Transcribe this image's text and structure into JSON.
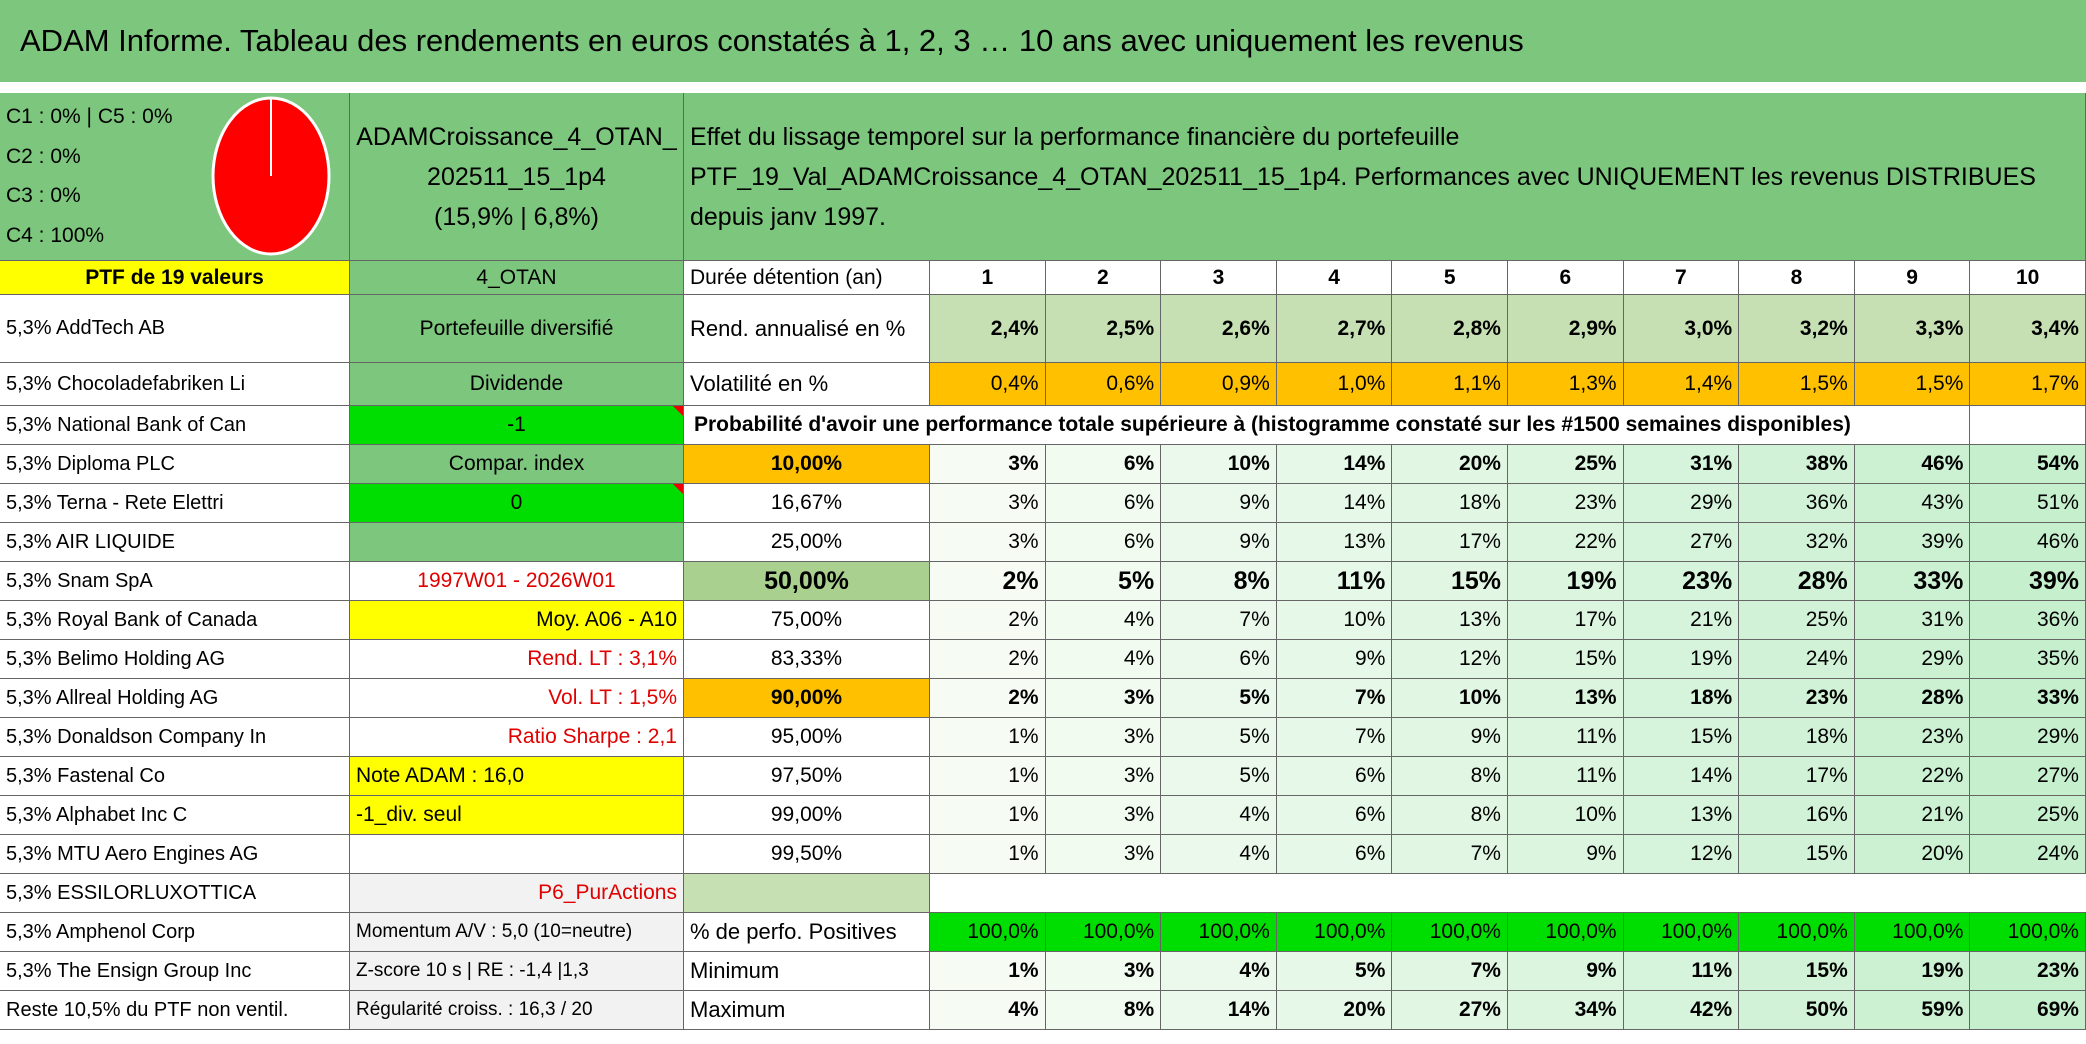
{
  "header": {
    "title": "ADAM Informe. Tableau des rendements en euros constatés à 1, 2, 3 … 10 ans avec uniquement les revenus"
  },
  "summary": {
    "allocation": [
      "C1 : 0% | C5 : 0%",
      "C2 : 0%",
      "C3 : 0%",
      "C4 : 100%"
    ],
    "portfolio": "ADAMCroissance_4_OTAN_202511_15_1p4",
    "stats": "(15,9% | 6,8%)",
    "description": "Effet du lissage temporel sur la performance financière du portefeuille PTF_19_Val_ADAMCroissance_4_OTAN_202511_15_1p4. Performances avec UNIQUEMENT les revenus DISTRIBUES depuis janv 1997."
  },
  "table": {
    "ptf_label": "PTF de 19 valeurs",
    "strategy": "4_OTAN",
    "holdings": [
      "5,3% AddTech AB",
      "5,3% Chocoladefabriken Li",
      "5,3% National Bank of Can",
      "5,3% Diploma PLC",
      "5,3% Terna - Rete Elettri",
      "5,3% AIR LIQUIDE",
      "5,3% Snam SpA",
      "5,3% Royal Bank of Canada",
      "5,3% Belimo Holding AG",
      "5,3% Allreal Holding AG",
      "5,3% Donaldson Company In",
      "5,3% Fastenal Co",
      "5,3% Alphabet Inc C",
      "5,3% MTU Aero Engines AG",
      "5,3% ESSILORLUXOTTICA",
      "5,3% Amphenol Corp",
      "5,3% The Ensign Group Inc",
      "Reste 10,5% du PTF non ventil."
    ],
    "info": [
      "Portefeuille diversifié",
      "Dividende",
      "-1",
      "Compar. index",
      "0",
      null,
      "1997W01 - 2026W01",
      "Moy. A06 - A10",
      "Rend. LT : 3,1%",
      "Vol. LT : 1,5%",
      "Ratio Sharpe : 2,1",
      "Note ADAM : 16,0",
      "-1_div. seul",
      null,
      "P6_PurActions",
      "Momentum A/V : 5,0 (10=neutre)",
      "Z-score 10 s | RE : -1,4 |1,3",
      "Régularité croiss. : 16,3 / 20"
    ],
    "duration_label": "Durée détention (an)",
    "years": [
      1,
      2,
      3,
      4,
      5,
      6,
      7,
      8,
      9,
      10
    ],
    "yield": {
      "label": "Rend. annualisé en %",
      "values": [
        "2,4%",
        "2,5%",
        "2,6%",
        "2,7%",
        "2,8%",
        "2,9%",
        "3,0%",
        "3,2%",
        "3,3%",
        "3,4%"
      ]
    },
    "volatility": {
      "label": "Volatilité en %",
      "values": [
        "0,4%",
        "0,6%",
        "0,9%",
        "1,0%",
        "1,1%",
        "1,3%",
        "1,4%",
        "1,5%",
        "1,5%",
        "1,7%"
      ]
    },
    "probability_title": "Probabilité d'avoir une performance totale supérieure à (histogramme constaté sur les #1500 semaines disponibles)",
    "probability_rows": [
      {
        "threshold": "10,00%",
        "values": [
          "3%",
          "6%",
          "10%",
          "14%",
          "20%",
          "25%",
          "31%",
          "38%",
          "46%",
          "54%"
        ]
      },
      {
        "threshold": "16,67%",
        "values": [
          "3%",
          "6%",
          "9%",
          "14%",
          "18%",
          "23%",
          "29%",
          "36%",
          "43%",
          "51%"
        ]
      },
      {
        "threshold": "25,00%",
        "values": [
          "3%",
          "6%",
          "9%",
          "13%",
          "17%",
          "22%",
          "27%",
          "32%",
          "39%",
          "46%"
        ]
      },
      {
        "threshold": "50,00%",
        "values": [
          "2%",
          "5%",
          "8%",
          "11%",
          "15%",
          "19%",
          "23%",
          "28%",
          "33%",
          "39%"
        ]
      },
      {
        "threshold": "75,00%",
        "values": [
          "2%",
          "4%",
          "7%",
          "10%",
          "13%",
          "17%",
          "21%",
          "25%",
          "31%",
          "36%"
        ]
      },
      {
        "threshold": "83,33%",
        "values": [
          "2%",
          "4%",
          "6%",
          "9%",
          "12%",
          "15%",
          "19%",
          "24%",
          "29%",
          "35%"
        ]
      },
      {
        "threshold": "90,00%",
        "values": [
          "2%",
          "3%",
          "5%",
          "7%",
          "10%",
          "13%",
          "18%",
          "23%",
          "28%",
          "33%"
        ]
      },
      {
        "threshold": "95,00%",
        "values": [
          "1%",
          "3%",
          "5%",
          "7%",
          "9%",
          "11%",
          "15%",
          "18%",
          "23%",
          "29%"
        ]
      },
      {
        "threshold": "97,50%",
        "values": [
          "1%",
          "3%",
          "5%",
          "6%",
          "8%",
          "11%",
          "14%",
          "17%",
          "22%",
          "27%"
        ]
      },
      {
        "threshold": "99,00%",
        "values": [
          "1%",
          "3%",
          "4%",
          "6%",
          "8%",
          "10%",
          "13%",
          "16%",
          "21%",
          "25%"
        ]
      },
      {
        "threshold": "99,50%",
        "values": [
          "1%",
          "3%",
          "4%",
          "6%",
          "7%",
          "9%",
          "12%",
          "15%",
          "20%",
          "24%"
        ]
      }
    ],
    "positives": {
      "label": "% de perfo. Positives",
      "values": [
        "100,0%",
        "100,0%",
        "100,0%",
        "100,0%",
        "100,0%",
        "100,0%",
        "100,0%",
        "100,0%",
        "100,0%",
        "100,0%"
      ]
    },
    "minimum": {
      "label": "Minimum",
      "values": [
        "1%",
        "3%",
        "4%",
        "5%",
        "7%",
        "9%",
        "11%",
        "15%",
        "19%",
        "23%"
      ]
    },
    "maximum": {
      "label": "Maximum",
      "values": [
        "4%",
        "8%",
        "14%",
        "20%",
        "27%",
        "34%",
        "42%",
        "50%",
        "59%",
        "69%"
      ]
    }
  }
}
